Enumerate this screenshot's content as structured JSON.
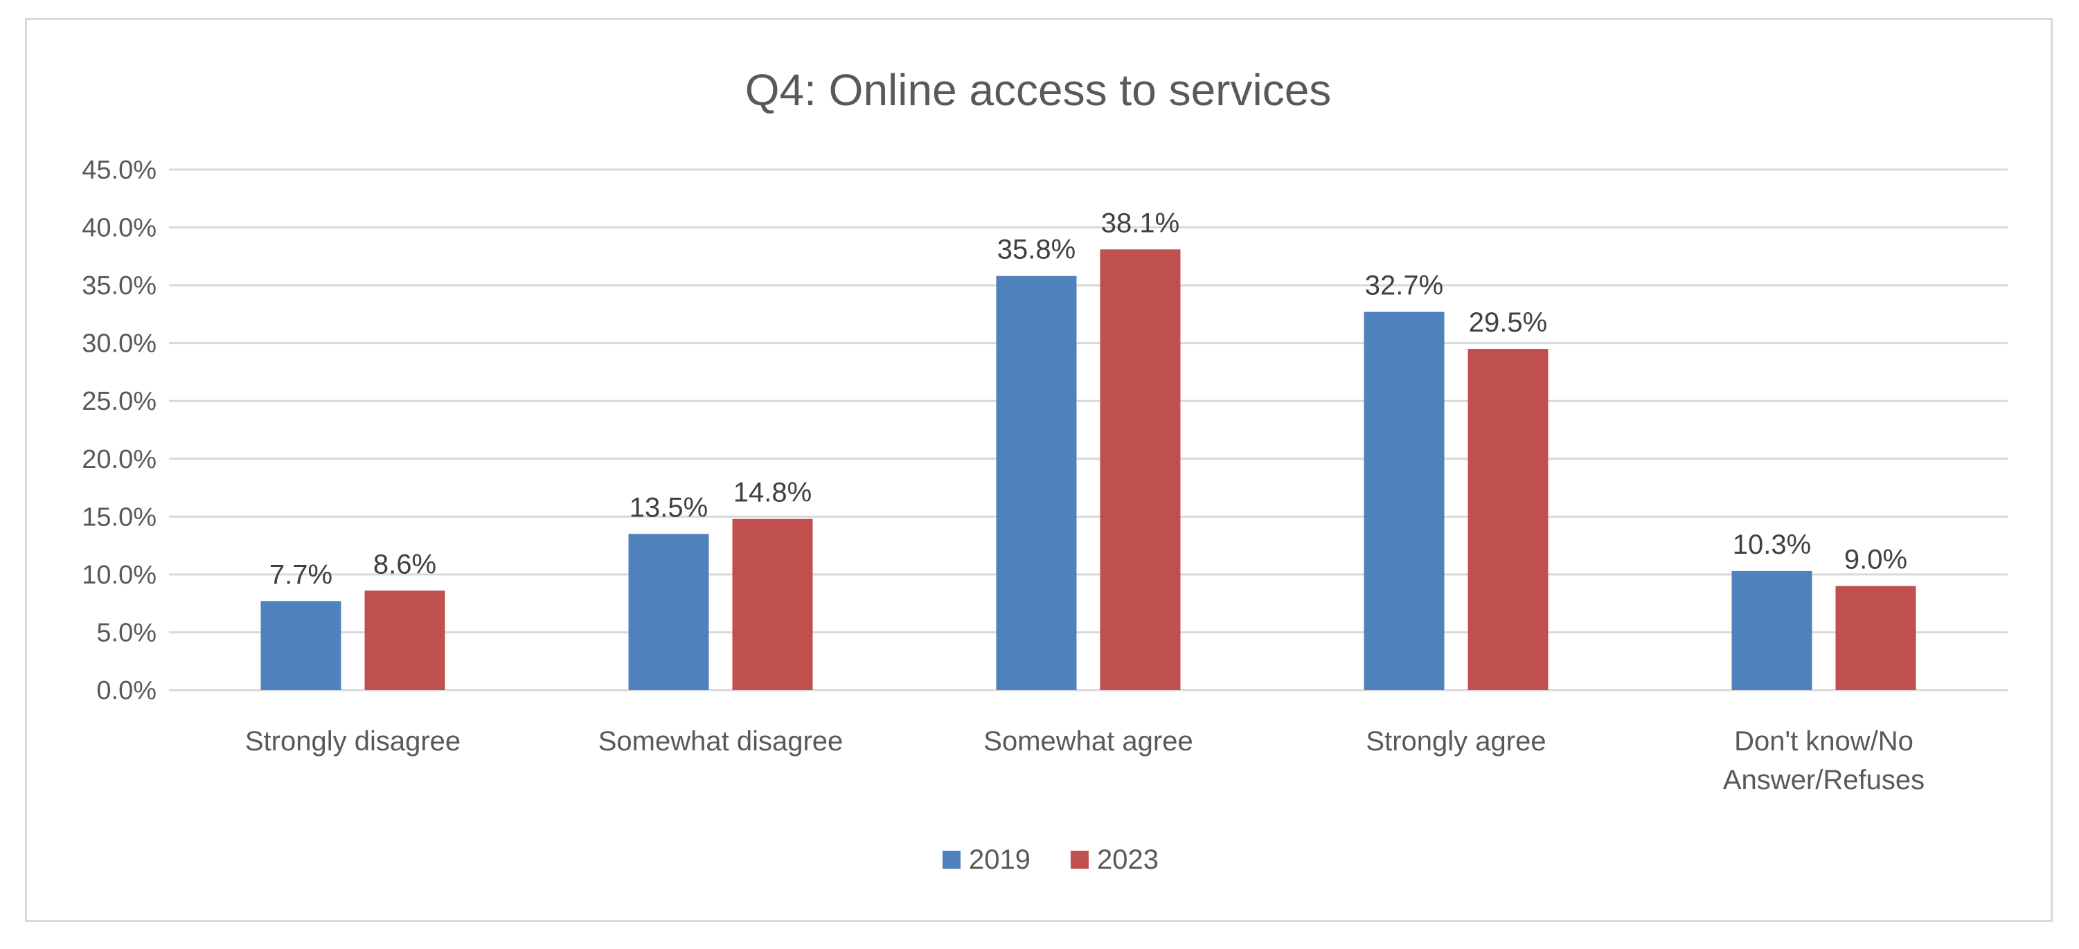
{
  "chart_data": {
    "type": "bar",
    "title": "Q4: Online access to services",
    "xlabel": "",
    "ylabel": "",
    "ylim": [
      0,
      45
    ],
    "y_ticks": [
      0,
      5,
      10,
      15,
      20,
      25,
      30,
      35,
      40,
      45
    ],
    "y_tick_labels": [
      "0.0%",
      "5.0%",
      "10.0%",
      "15.0%",
      "20.0%",
      "25.0%",
      "30.0%",
      "35.0%",
      "40.0%",
      "45.0%"
    ],
    "grid": true,
    "legend_position": "bottom",
    "categories": [
      [
        "Strongly disagree"
      ],
      [
        "Somewhat disagree"
      ],
      [
        "Somewhat agree"
      ],
      [
        "Strongly agree"
      ],
      [
        "Don't know/No",
        "Answer/Refuses"
      ]
    ],
    "series": [
      {
        "name": "2019",
        "color": "#4f81bd",
        "values": [
          7.7,
          13.5,
          35.8,
          32.7,
          10.3
        ],
        "labels": [
          "7.7%",
          "13.5%",
          "35.8%",
          "32.7%",
          "10.3%"
        ]
      },
      {
        "name": "2023",
        "color": "#c0504d",
        "values": [
          8.6,
          14.8,
          38.1,
          29.5,
          9.0
        ],
        "labels": [
          "8.6%",
          "14.8%",
          "38.1%",
          "29.5%",
          "9.0%"
        ]
      }
    ],
    "gridline_color": "#d9d9d9",
    "axis_color": "#d9d9d9"
  }
}
